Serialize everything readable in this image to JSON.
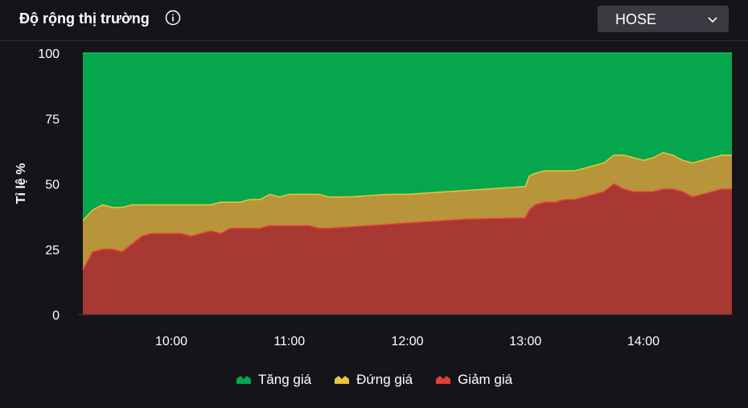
{
  "header": {
    "title": "Độ rộng thị trường",
    "info_icon": "info-circle-icon",
    "exchange_select": {
      "value": "HOSE",
      "icon": "chevron-down-icon"
    }
  },
  "colors": {
    "background": "#151519",
    "up": "#06a64c",
    "unchanged": "#b8943a",
    "down": "#a83832",
    "up_line": "#10c864",
    "unchanged_line": "#e8c440",
    "down_line": "#e83e3e"
  },
  "chart_data": {
    "type": "area",
    "stacked": true,
    "ylabel": "Tỉ lệ %",
    "xlabel": "",
    "ylim": [
      0,
      100
    ],
    "y_ticks": [
      "0",
      "25",
      "50",
      "75",
      "100"
    ],
    "x_ticks": [
      "10:00",
      "11:00",
      "12:00",
      "13:00",
      "14:00"
    ],
    "x_tick_values": [
      600,
      660,
      720,
      780,
      840
    ],
    "xlim": [
      555,
      885
    ],
    "grid": false,
    "legend_position": "bottom",
    "x": [
      555,
      560,
      565,
      570,
      575,
      580,
      585,
      590,
      595,
      600,
      605,
      610,
      615,
      620,
      625,
      630,
      635,
      640,
      645,
      650,
      655,
      660,
      665,
      670,
      675,
      680,
      690,
      700,
      710,
      720,
      730,
      740,
      750,
      780,
      782,
      785,
      790,
      795,
      800,
      805,
      810,
      815,
      820,
      825,
      830,
      835,
      840,
      845,
      850,
      855,
      860,
      865,
      870,
      875,
      880,
      885
    ],
    "series": [
      {
        "name": "Giảm giá",
        "values": [
          17,
          24,
          25,
          25,
          24,
          27,
          30,
          31,
          31,
          31,
          31,
          30,
          31,
          32,
          31,
          33,
          33,
          33,
          33,
          34,
          34,
          34,
          34,
          34,
          33,
          33,
          33.5,
          34,
          34.5,
          35,
          35.5,
          36,
          36.5,
          37,
          40,
          42,
          43,
          43,
          44,
          44,
          45,
          46,
          47,
          50,
          48,
          47,
          47,
          47,
          48,
          48,
          47,
          45,
          46,
          47,
          48,
          48
        ]
      },
      {
        "name": "Đứng giá",
        "values": [
          19,
          16,
          17,
          16,
          17,
          15,
          12,
          11,
          11,
          11,
          11,
          12,
          11,
          10,
          12,
          10,
          10,
          11,
          11,
          12,
          11,
          12,
          12,
          12,
          13,
          12,
          11.5,
          11.5,
          11.5,
          11,
          11,
          11,
          11,
          12,
          13,
          12,
          12,
          12,
          11,
          11,
          11,
          11,
          11,
          11,
          13,
          13,
          12,
          13,
          14,
          13,
          12,
          13,
          13,
          13,
          13,
          13
        ]
      },
      {
        "name": "Tăng giá",
        "values": [
          64,
          60,
          58,
          59,
          59,
          58,
          58,
          58,
          58,
          58,
          58,
          58,
          58,
          58,
          57,
          57,
          57,
          56,
          56,
          54,
          55,
          54,
          54,
          54,
          54,
          55,
          55,
          54.5,
          54,
          54,
          53.5,
          53,
          52.5,
          51,
          47,
          46,
          45,
          45,
          45,
          45,
          44,
          43,
          42,
          39,
          39,
          40,
          41,
          40,
          38,
          39,
          41,
          42,
          41,
          40,
          39,
          39
        ]
      }
    ]
  },
  "legend": {
    "items": [
      {
        "label": "Tăng giá",
        "color": "#06a64c"
      },
      {
        "label": "Đứng giá",
        "color": "#e8c440"
      },
      {
        "label": "Giảm giá",
        "color": "#e04038"
      }
    ]
  }
}
